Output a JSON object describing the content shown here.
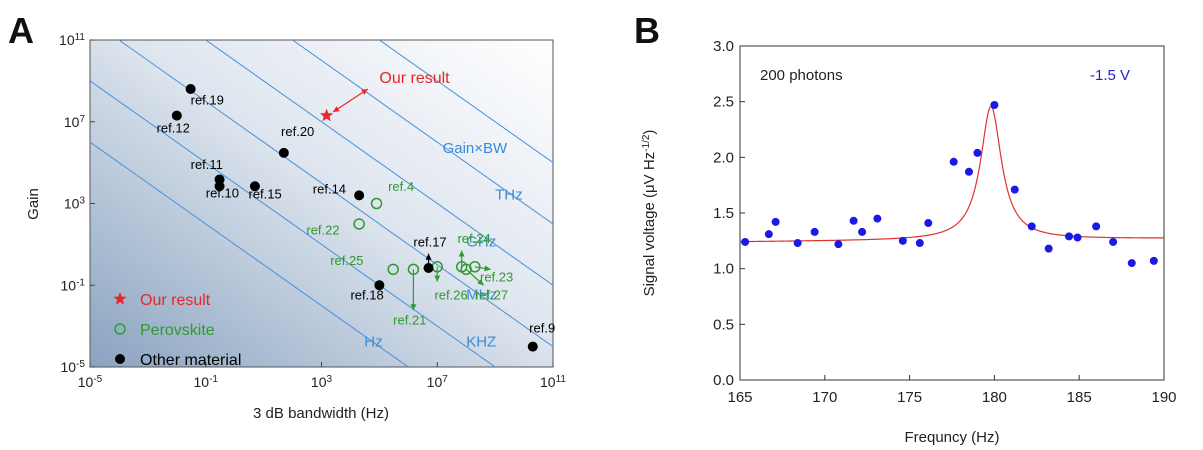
{
  "panels": {
    "a": {
      "letter": "A"
    },
    "b": {
      "letter": "B"
    }
  },
  "chart_data": [
    {
      "type": "scatter",
      "panel": "A",
      "xlabel": "3 dB bandwidth (Hz)",
      "ylabel": "Gain",
      "x_scale": "log",
      "y_scale": "log",
      "xlim": [
        1e-05,
        100000000000.0
      ],
      "ylim": [
        1e-05,
        100000000000.0
      ],
      "x_ticks": [
        {
          "value": 1e-05,
          "base": "10",
          "exp": "-5"
        },
        {
          "value": 0.1,
          "base": "10",
          "exp": "-1"
        },
        {
          "value": 1000,
          "base": "10",
          "exp": "3"
        },
        {
          "value": 10000000.0,
          "base": "10",
          "exp": "7"
        },
        {
          "value": 100000000000.0,
          "base": "10",
          "exp": "11"
        }
      ],
      "y_ticks": [
        {
          "value": 1e-05,
          "base": "10",
          "exp": "-5"
        },
        {
          "value": 0.1,
          "base": "10",
          "exp": "-1"
        },
        {
          "value": 1000,
          "base": "10",
          "exp": "3"
        },
        {
          "value": 10000000.0,
          "base": "10",
          "exp": "7"
        },
        {
          "value": 100000000000.0,
          "base": "10",
          "exp": "11"
        }
      ],
      "gain_bandwidth_lines": [
        {
          "product": 10,
          "label": "Hz",
          "label_x": 30000,
          "label_y": 0.0001
        },
        {
          "product": 10000.0,
          "label": "KHZ",
          "label_x": 100000000.0,
          "label_y": 0.0001
        },
        {
          "product": 10000000.0,
          "label": "MHz",
          "label_x": 100000000.0,
          "label_y": 0.02
        },
        {
          "product": 10000000000.0,
          "label": "GHz",
          "label_x": 100000000.0,
          "label_y": 8
        },
        {
          "product": 10000000000000.0,
          "label": "THz",
          "label_x": 1000000000.0,
          "label_y": 1600
        },
        {
          "product": 1e+16,
          "label": null
        }
      ],
      "lines_label": {
        "text": "Gain×BW",
        "x": 200000000.0,
        "y": 300000
      },
      "colors": {
        "ours": "#e8262a",
        "perovskite": "#2f9a2f",
        "other": "#000000",
        "lines": "#4a90d9",
        "label_blue": "#3a8ad6"
      },
      "series": [
        {
          "name": "Our result",
          "marker": "star",
          "points": [
            {
              "x": 1500,
              "y": 20000000.0,
              "label": "Our result",
              "label_x": 100000.0,
              "label_y": 800000000.0,
              "arrow": "both",
              "arrow_from_x": 2500,
              "arrow_from_y": 30000000.0,
              "arrow_to_x": 40000,
              "arrow_to_y": 400000000.0
            }
          ]
        },
        {
          "name": "Perovskite",
          "marker": "open-circle",
          "points": [
            {
              "x": 80000.0,
              "y": 1000,
              "label": "ref.4",
              "label_x": 200000.0,
              "label_y": 4000
            },
            {
              "x": 20000.0,
              "y": 100,
              "label": "ref.22",
              "label_x": 300,
              "label_y": 30
            },
            {
              "x": 300000.0,
              "y": 0.6,
              "label": "ref.25",
              "label_x": 2000,
              "label_y": 1
            },
            {
              "x": 1500000.0,
              "y": 0.6,
              "label": "ref.21",
              "label_x": 300000.0,
              "label_y": 0.0012,
              "arrow": "down",
              "arrow_to_x": 1500000.0,
              "arrow_to_y": 0.006
            },
            {
              "x": 10000000.0,
              "y": 0.8,
              "label": "ref.26",
              "label_x": 8000000.0,
              "label_y": 0.02,
              "arrow": "down",
              "arrow_to_x": 10000000.0,
              "arrow_to_y": 0.15
            },
            {
              "x": 70000000.0,
              "y": 0.8,
              "label": "ref.24",
              "label_x": 50000000.0,
              "label_y": 12,
              "arrow": "up",
              "arrow_to_x": 70000000.0,
              "arrow_to_y": 5
            },
            {
              "x": 100000000.0,
              "y": 0.6,
              "label": "ref.27",
              "label_x": 200000000.0,
              "label_y": 0.02,
              "arrow": "down-right",
              "arrow_to_x": 400000000.0,
              "arrow_to_y": 0.1
            },
            {
              "x": 200000000.0,
              "y": 0.8,
              "label": "ref.23",
              "label_x": 300000000.0,
              "label_y": 0.15,
              "arrow": "right",
              "arrow_to_x": 700000000.0,
              "arrow_to_y": 0.6
            }
          ]
        },
        {
          "name": "Other material",
          "marker": "filled-circle",
          "points": [
            {
              "x": 0.01,
              "y": 20000000.0,
              "label": "ref.12",
              "label_x": 0.002,
              "label_y": 3000000.0
            },
            {
              "x": 0.03,
              "y": 400000000.0,
              "label": "ref.19",
              "label_x": 0.03,
              "label_y": 70000000.0
            },
            {
              "x": 0.3,
              "y": 7000,
              "label": "ref.11",
              "label_x": 0.03,
              "label_y": 50000
            },
            {
              "x": 0.3,
              "y": 15000,
              "label": null
            },
            {
              "x": 5,
              "y": 7000,
              "label": "ref.15",
              "label_x": 3,
              "label_y": 1800
            },
            {
              "x": 50,
              "y": 300000.0,
              "label": "ref.20",
              "label_x": 40,
              "label_y": 2000000.0
            },
            {
              "x": 20000.0,
              "y": 2500,
              "label": "ref.14",
              "label_x": 500,
              "label_y": 3000
            },
            {
              "x": 5000000.0,
              "y": 0.7,
              "label": "ref.17",
              "label_x": 1500000.0,
              "label_y": 8,
              "arrow": "up",
              "arrow_to_x": 5000000.0,
              "arrow_to_y": 3.5
            },
            {
              "x": 100000.0,
              "y": 0.1,
              "label": "ref.18",
              "label_x": 10000,
              "label_y": 0.02
            },
            {
              "x": 20000000000.0,
              "y": 0.0001,
              "label": "ref.9",
              "label_x": 15000000000.0,
              "label_y": 0.0005
            }
          ],
          "ref10_label": {
            "text": "ref.10",
            "x": 0.1,
            "y": 2000
          }
        }
      ],
      "legend": {
        "placement": "lower-left",
        "entries": [
          {
            "marker": "star",
            "text": "Our result"
          },
          {
            "marker": "open-circle",
            "text": "Perovskite"
          },
          {
            "marker": "filled-circle",
            "text": "Other material"
          }
        ]
      }
    },
    {
      "type": "scatter",
      "panel": "B",
      "xlabel": "Frequncy (Hz)",
      "ylabel_main": "Signal voltage (",
      "ylabel_mu": "μ",
      "ylabel_unit": "V Hz",
      "ylabel_sup": "-1/2",
      "ylabel_close": ")",
      "xlim": [
        165,
        190
      ],
      "ylim": [
        0,
        3
      ],
      "x_ticks": [
        {
          "value": 165,
          "label": "165"
        },
        {
          "value": 170,
          "label": "170"
        },
        {
          "value": 175,
          "label": "175"
        },
        {
          "value": 180,
          "label": "180"
        },
        {
          "value": 185,
          "label": "185"
        },
        {
          "value": 190,
          "label": "190"
        }
      ],
      "y_ticks": [
        {
          "value": 0,
          "label": "0.0"
        },
        {
          "value": 0.5,
          "label": "0.5"
        },
        {
          "value": 1,
          "label": "1.0"
        },
        {
          "value": 1.5,
          "label": "1.5"
        },
        {
          "value": 2,
          "label": "2.0"
        },
        {
          "value": 2.5,
          "label": "2.5"
        },
        {
          "value": 3,
          "label": "3.0"
        }
      ],
      "annotations": [
        {
          "text": "200 photons",
          "color": "#222222"
        },
        {
          "text": "-1.5 V",
          "color": "#2323c8"
        }
      ],
      "colors": {
        "points": "#1a1ae6",
        "fit": "#e03030"
      },
      "series": [
        {
          "name": "",
          "marker": "filled-circle",
          "x": [
            165.3,
            166.7,
            167.1,
            168.4,
            169.4,
            170.8,
            171.7,
            172.2,
            173.1,
            174.6,
            175.6,
            176.1,
            177.6,
            178.5,
            179.0,
            180.0,
            181.2,
            182.2,
            183.2,
            184.4,
            184.9,
            186.0,
            187.0,
            188.1,
            189.4
          ],
          "y": [
            1.24,
            1.31,
            1.42,
            1.23,
            1.33,
            1.22,
            1.43,
            1.33,
            1.45,
            1.25,
            1.23,
            1.41,
            1.96,
            1.87,
            2.04,
            2.47,
            1.71,
            1.38,
            1.18,
            1.29,
            1.28,
            1.38,
            1.24,
            1.05,
            1.07
          ]
        }
      ],
      "fit": {
        "type": "lorentzian",
        "baseline_start": 1.24,
        "baseline_end": 1.27,
        "peak_x": 179.8,
        "peak_height": 1.2,
        "hwhm": 0.75
      }
    }
  ]
}
